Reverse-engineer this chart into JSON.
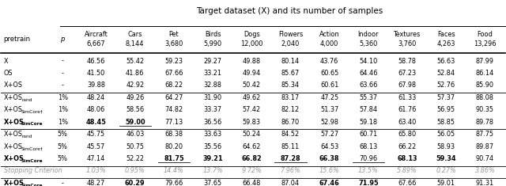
{
  "title": "Target dataset (X) and its number of samples",
  "col_headers_line1": [
    "Aircraft",
    "Cars",
    "Pet",
    "Birds",
    "Dogs",
    "Flowers",
    "Action",
    "Indoor",
    "Textures",
    "Faces",
    "Food"
  ],
  "col_headers_line2": [
    "6,667",
    "8,144",
    "3,680",
    "5,990",
    "12,000",
    "2,040",
    "4,000",
    "5,360",
    "3,760",
    "4,263",
    "13,296"
  ],
  "row_labels_main": [
    "X",
    "OS",
    "X+OS",
    "X+OS",
    "X+OS",
    "X+OS",
    "X+OS",
    "X+OS",
    "X+OS",
    "Stopping Criterion",
    "X+OS"
  ],
  "row_labels_sub": [
    "",
    "",
    "",
    "rand",
    "SimCore†",
    "SimCore",
    "rand",
    "SimCore†",
    "SimCore",
    "",
    "SimCore"
  ],
  "row_p": [
    "-",
    "-",
    "-",
    "1%",
    "1%",
    "1%",
    "5%",
    "5%",
    "5%",
    "",
    "-"
  ],
  "row_italic_label": [
    false,
    true,
    false,
    false,
    false,
    false,
    false,
    false,
    false,
    true,
    false
  ],
  "row_bold_label": [
    false,
    false,
    false,
    false,
    false,
    true,
    false,
    false,
    true,
    false,
    true
  ],
  "italic_rows": [
    9
  ],
  "data": [
    [
      "46.56",
      "55.42",
      "59.23",
      "29.27",
      "49.88",
      "80.14",
      "43.76",
      "54.10",
      "58.78",
      "56.63",
      "87.99"
    ],
    [
      "41.50",
      "41.86",
      "67.66",
      "33.21",
      "49.94",
      "85.67",
      "60.65",
      "64.46",
      "67.23",
      "52.84",
      "86.14"
    ],
    [
      "39.88",
      "42.92",
      "68.22",
      "32.88",
      "50.42",
      "85.34",
      "60.61",
      "63.66",
      "67.98",
      "52.76",
      "85.90"
    ],
    [
      "48.24",
      "49.26",
      "64.27",
      "31.90",
      "49.62",
      "83.17",
      "47.25",
      "55.37",
      "61.33",
      "57.37",
      "88.08"
    ],
    [
      "48.06",
      "58.56",
      "74.82",
      "33.37",
      "57.42",
      "82.12",
      "51.37",
      "57.84",
      "61.76",
      "56.95",
      "90.35"
    ],
    [
      "48.45",
      "59.00",
      "77.13",
      "36.56",
      "59.83",
      "86.70",
      "52.98",
      "59.18",
      "63.40",
      "58.85",
      "89.78"
    ],
    [
      "45.75",
      "46.03",
      "68.38",
      "33.63",
      "50.24",
      "84.52",
      "57.27",
      "60.71",
      "65.80",
      "56.05",
      "87.75"
    ],
    [
      "45.57",
      "50.75",
      "80.20",
      "35.56",
      "64.62",
      "85.11",
      "64.53",
      "68.13",
      "66.22",
      "58.93",
      "89.87"
    ],
    [
      "47.14",
      "52.22",
      "81.75",
      "39.21",
      "66.82",
      "87.28",
      "66.38",
      "70.96",
      "68.13",
      "59.34",
      "90.74"
    ],
    [
      "1.03%",
      "0.95%",
      "14.4%",
      "13.7%",
      "9.72%",
      "7.96%",
      "15.6%",
      "13.5%",
      "5.89%",
      "0.27%",
      "3.86%"
    ],
    [
      "48.27",
      "60.29",
      "79.66",
      "37.65",
      "66.48",
      "87.04",
      "67.46",
      "71.95",
      "67.66",
      "59.01",
      "91.31"
    ]
  ],
  "bold_cells": {
    "5": [
      0,
      1
    ],
    "8": [
      2,
      3,
      4,
      5,
      6,
      8,
      9
    ],
    "10": [
      1,
      6,
      7
    ]
  },
  "underline_cells": {
    "5": [
      1
    ],
    "8": [
      2,
      5,
      7
    ],
    "10": [
      0,
      3,
      4,
      5,
      6,
      7,
      9
    ]
  },
  "separator_after_rows": [
    2,
    5,
    8,
    9
  ],
  "background_color": "#ffffff"
}
